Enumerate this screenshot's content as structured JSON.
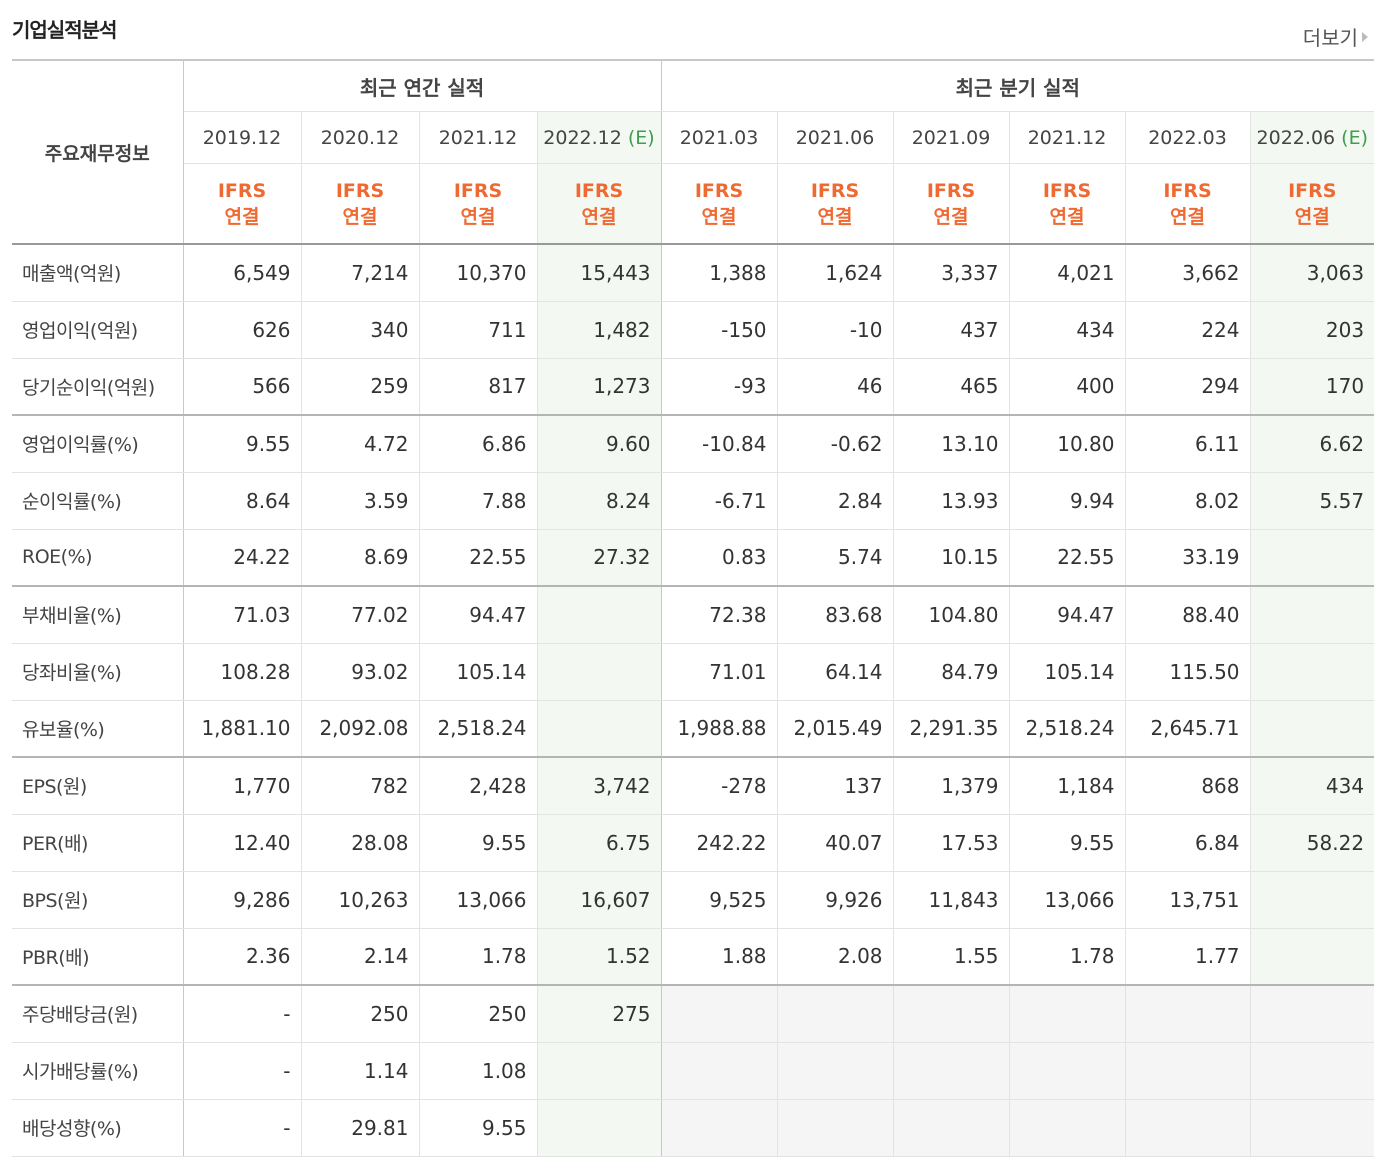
{
  "title": "기업실적분석",
  "more_label": "더보기",
  "corner_label": "주요재무정보",
  "annual_header": "최근 연간 실적",
  "quarter_header": "최근 분기 실적",
  "ifrs_top": "IFRS",
  "ifrs_bottom": "연결",
  "estimate_mark": "(E)",
  "annual_dates": [
    "2019.12",
    "2020.12",
    "2021.12",
    "2022.12"
  ],
  "quarter_dates": [
    "2021.03",
    "2021.06",
    "2021.09",
    "2021.12",
    "2022.03",
    "2022.06"
  ],
  "rows": [
    {
      "label": "매출액(억원)",
      "values": [
        "6,549",
        "7,214",
        "10,370",
        "15,443",
        "1,388",
        "1,624",
        "3,337",
        "4,021",
        "3,662",
        "3,063"
      ]
    },
    {
      "label": "영업이익(억원)",
      "values": [
        "626",
        "340",
        "711",
        "1,482",
        "-150",
        "-10",
        "437",
        "434",
        "224",
        "203"
      ]
    },
    {
      "label": "당기순이익(억원)",
      "values": [
        "566",
        "259",
        "817",
        "1,273",
        "-93",
        "46",
        "465",
        "400",
        "294",
        "170"
      ]
    },
    {
      "label": "영업이익률(%)",
      "values": [
        "9.55",
        "4.72",
        "6.86",
        "9.60",
        "-10.84",
        "-0.62",
        "13.10",
        "10.80",
        "6.11",
        "6.62"
      ]
    },
    {
      "label": "순이익률(%)",
      "values": [
        "8.64",
        "3.59",
        "7.88",
        "8.24",
        "-6.71",
        "2.84",
        "13.93",
        "9.94",
        "8.02",
        "5.57"
      ]
    },
    {
      "label": "ROE(%)",
      "values": [
        "24.22",
        "8.69",
        "22.55",
        "27.32",
        "0.83",
        "5.74",
        "10.15",
        "22.55",
        "33.19",
        ""
      ]
    },
    {
      "label": "부채비율(%)",
      "values": [
        "71.03",
        "77.02",
        "94.47",
        "",
        "72.38",
        "83.68",
        "104.80",
        "94.47",
        "88.40",
        ""
      ]
    },
    {
      "label": "당좌비율(%)",
      "values": [
        "108.28",
        "93.02",
        "105.14",
        "",
        "71.01",
        "64.14",
        "84.79",
        "105.14",
        "115.50",
        ""
      ]
    },
    {
      "label": "유보율(%)",
      "values": [
        "1,881.10",
        "2,092.08",
        "2,518.24",
        "",
        "1,988.88",
        "2,015.49",
        "2,291.35",
        "2,518.24",
        "2,645.71",
        ""
      ]
    },
    {
      "label": "EPS(원)",
      "values": [
        "1,770",
        "782",
        "2,428",
        "3,742",
        "-278",
        "137",
        "1,379",
        "1,184",
        "868",
        "434"
      ]
    },
    {
      "label": "PER(배)",
      "values": [
        "12.40",
        "28.08",
        "9.55",
        "6.75",
        "242.22",
        "40.07",
        "17.53",
        "9.55",
        "6.84",
        "58.22"
      ]
    },
    {
      "label": "BPS(원)",
      "values": [
        "9,286",
        "10,263",
        "13,066",
        "16,607",
        "9,525",
        "9,926",
        "11,843",
        "13,066",
        "13,751",
        ""
      ]
    },
    {
      "label": "PBR(배)",
      "values": [
        "2.36",
        "2.14",
        "1.78",
        "1.52",
        "1.88",
        "2.08",
        "1.55",
        "1.78",
        "1.77",
        ""
      ]
    },
    {
      "label": "주당배당금(원)",
      "values": [
        "-",
        "250",
        "250",
        "275"
      ]
    },
    {
      "label": "시가배당률(%)",
      "values": [
        "-",
        "1.14",
        "1.08",
        ""
      ]
    },
    {
      "label": "배당성향(%)",
      "values": [
        "-",
        "29.81",
        "9.55",
        ""
      ]
    }
  ],
  "colors": {
    "ifrs": "#ee6a32",
    "negative": "#e00000",
    "estimate": "#3d9e4c"
  }
}
